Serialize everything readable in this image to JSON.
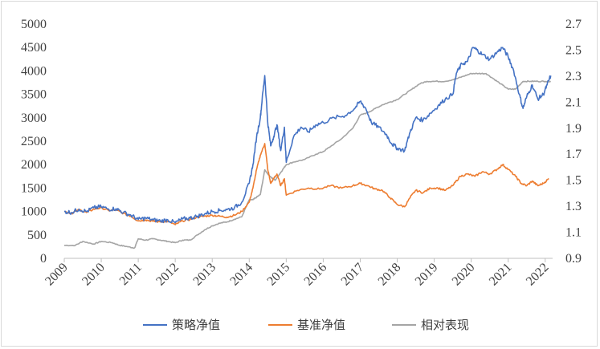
{
  "chart_data": {
    "type": "line",
    "title": "",
    "xlabel": "",
    "ylabel": "",
    "x_ticks": [
      "2009",
      "2010",
      "2011",
      "2012",
      "2013",
      "2014",
      "2015",
      "2016",
      "2017",
      "2018",
      "2019",
      "2020",
      "2021",
      "2022"
    ],
    "y_left_ticks": [
      "0",
      "500",
      "1000",
      "1500",
      "2000",
      "2500",
      "3000",
      "3500",
      "4000",
      "4500",
      "5000"
    ],
    "y_right_ticks": [
      "0.9",
      "1.1",
      "1.3",
      "1.5",
      "1.7",
      "1.9",
      "2.1",
      "2.3",
      "2.5",
      "2.7"
    ],
    "ylim_left": [
      0,
      5000
    ],
    "ylim_right": [
      0.9,
      2.7
    ],
    "xlim": [
      2009,
      2022.2
    ],
    "grid": false,
    "legend_position": "bottom",
    "series": [
      {
        "name": "策略净值",
        "axis": "left",
        "color": "#4472C4",
        "points": [
          [
            2009.0,
            1000
          ],
          [
            2009.2,
            980
          ],
          [
            2009.4,
            1050
          ],
          [
            2009.6,
            1000
          ],
          [
            2009.8,
            1080
          ],
          [
            2010.0,
            1100
          ],
          [
            2010.2,
            1050
          ],
          [
            2010.4,
            1060
          ],
          [
            2010.6,
            980
          ],
          [
            2010.8,
            920
          ],
          [
            2011.0,
            830
          ],
          [
            2011.2,
            860
          ],
          [
            2011.4,
            820
          ],
          [
            2011.6,
            800
          ],
          [
            2011.8,
            820
          ],
          [
            2012.0,
            760
          ],
          [
            2012.2,
            840
          ],
          [
            2012.4,
            860
          ],
          [
            2012.6,
            900
          ],
          [
            2012.8,
            950
          ],
          [
            2013.0,
            1000
          ],
          [
            2013.2,
            1020
          ],
          [
            2013.4,
            1040
          ],
          [
            2013.6,
            1080
          ],
          [
            2013.8,
            1200
          ],
          [
            2014.0,
            1600
          ],
          [
            2014.1,
            2000
          ],
          [
            2014.2,
            2600
          ],
          [
            2014.3,
            3000
          ],
          [
            2014.35,
            3400
          ],
          [
            2014.42,
            3900
          ],
          [
            2014.5,
            2900
          ],
          [
            2014.58,
            2400
          ],
          [
            2014.66,
            2600
          ],
          [
            2014.75,
            2850
          ],
          [
            2014.85,
            2300
          ],
          [
            2014.95,
            2800
          ],
          [
            2015.0,
            2050
          ],
          [
            2015.2,
            2600
          ],
          [
            2015.4,
            2800
          ],
          [
            2015.6,
            2700
          ],
          [
            2015.8,
            2850
          ],
          [
            2016.0,
            2900
          ],
          [
            2016.3,
            3000
          ],
          [
            2016.6,
            3050
          ],
          [
            2016.85,
            3200
          ],
          [
            2017.0,
            3350
          ],
          [
            2017.15,
            3200
          ],
          [
            2017.3,
            2900
          ],
          [
            2017.5,
            2800
          ],
          [
            2017.7,
            2650
          ],
          [
            2017.85,
            2450
          ],
          [
            2018.0,
            2350
          ],
          [
            2018.2,
            2300
          ],
          [
            2018.35,
            2700
          ],
          [
            2018.5,
            3000
          ],
          [
            2018.7,
            2950
          ],
          [
            2018.9,
            3100
          ],
          [
            2019.1,
            3250
          ],
          [
            2019.3,
            3400
          ],
          [
            2019.5,
            3500
          ],
          [
            2019.6,
            3950
          ],
          [
            2019.75,
            4150
          ],
          [
            2019.9,
            4200
          ],
          [
            2020.05,
            4500
          ],
          [
            2020.15,
            4450
          ],
          [
            2020.3,
            4350
          ],
          [
            2020.5,
            4250
          ],
          [
            2020.7,
            4400
          ],
          [
            2020.85,
            4500
          ],
          [
            2021.0,
            4300
          ],
          [
            2021.15,
            4000
          ],
          [
            2021.3,
            3500
          ],
          [
            2021.4,
            3200
          ],
          [
            2021.5,
            3450
          ],
          [
            2021.65,
            3700
          ],
          [
            2021.8,
            3400
          ],
          [
            2021.95,
            3500
          ],
          [
            2022.05,
            3700
          ],
          [
            2022.15,
            3900
          ]
        ]
      },
      {
        "name": "基准净值",
        "axis": "left",
        "color": "#ED7D31",
        "points": [
          [
            2009.0,
            1000
          ],
          [
            2009.2,
            960
          ],
          [
            2009.4,
            1040
          ],
          [
            2009.6,
            980
          ],
          [
            2009.8,
            1050
          ],
          [
            2010.0,
            1080
          ],
          [
            2010.2,
            1020
          ],
          [
            2010.4,
            1030
          ],
          [
            2010.6,
            960
          ],
          [
            2010.8,
            900
          ],
          [
            2011.0,
            800
          ],
          [
            2011.2,
            820
          ],
          [
            2011.4,
            790
          ],
          [
            2011.6,
            780
          ],
          [
            2011.8,
            790
          ],
          [
            2012.0,
            720
          ],
          [
            2012.2,
            800
          ],
          [
            2012.4,
            830
          ],
          [
            2012.6,
            880
          ],
          [
            2012.8,
            900
          ],
          [
            2013.0,
            920
          ],
          [
            2013.2,
            900
          ],
          [
            2013.4,
            880
          ],
          [
            2013.6,
            920
          ],
          [
            2013.8,
            1000
          ],
          [
            2014.0,
            1200
          ],
          [
            2014.1,
            1500
          ],
          [
            2014.2,
            1900
          ],
          [
            2014.3,
            2200
          ],
          [
            2014.42,
            2450
          ],
          [
            2014.5,
            1900
          ],
          [
            2014.58,
            1600
          ],
          [
            2014.66,
            1700
          ],
          [
            2014.75,
            1800
          ],
          [
            2014.85,
            1550
          ],
          [
            2014.95,
            1700
          ],
          [
            2015.0,
            1350
          ],
          [
            2015.3,
            1450
          ],
          [
            2015.6,
            1500
          ],
          [
            2015.9,
            1480
          ],
          [
            2016.2,
            1550
          ],
          [
            2016.5,
            1500
          ],
          [
            2016.8,
            1550
          ],
          [
            2017.0,
            1600
          ],
          [
            2017.2,
            1550
          ],
          [
            2017.4,
            1480
          ],
          [
            2017.6,
            1450
          ],
          [
            2017.8,
            1300
          ],
          [
            2018.0,
            1150
          ],
          [
            2018.2,
            1100
          ],
          [
            2018.35,
            1300
          ],
          [
            2018.5,
            1450
          ],
          [
            2018.7,
            1400
          ],
          [
            2018.9,
            1500
          ],
          [
            2019.1,
            1500
          ],
          [
            2019.3,
            1450
          ],
          [
            2019.5,
            1550
          ],
          [
            2019.7,
            1750
          ],
          [
            2019.9,
            1800
          ],
          [
            2020.1,
            1750
          ],
          [
            2020.3,
            1850
          ],
          [
            2020.5,
            1800
          ],
          [
            2020.7,
            1900
          ],
          [
            2020.85,
            2000
          ],
          [
            2021.0,
            1900
          ],
          [
            2021.2,
            1750
          ],
          [
            2021.35,
            1600
          ],
          [
            2021.5,
            1550
          ],
          [
            2021.65,
            1650
          ],
          [
            2021.8,
            1550
          ],
          [
            2021.95,
            1600
          ],
          [
            2022.1,
            1700
          ]
        ]
      },
      {
        "name": "相对表现",
        "axis": "right",
        "color": "#A5A5A5",
        "points": [
          [
            2009.0,
            1.0
          ],
          [
            2009.3,
            1.0
          ],
          [
            2009.5,
            1.03
          ],
          [
            2009.8,
            1.01
          ],
          [
            2010.0,
            1.03
          ],
          [
            2010.3,
            1.02
          ],
          [
            2010.5,
            1.0
          ],
          [
            2010.7,
            0.99
          ],
          [
            2010.9,
            0.98
          ],
          [
            2011.0,
            1.05
          ],
          [
            2011.2,
            1.04
          ],
          [
            2011.4,
            1.05
          ],
          [
            2011.6,
            1.04
          ],
          [
            2011.8,
            1.03
          ],
          [
            2012.0,
            1.02
          ],
          [
            2012.2,
            1.04
          ],
          [
            2012.4,
            1.04
          ],
          [
            2012.6,
            1.08
          ],
          [
            2012.8,
            1.12
          ],
          [
            2013.0,
            1.15
          ],
          [
            2013.2,
            1.17
          ],
          [
            2013.4,
            1.18
          ],
          [
            2013.6,
            1.2
          ],
          [
            2013.8,
            1.22
          ],
          [
            2014.0,
            1.35
          ],
          [
            2014.1,
            1.35
          ],
          [
            2014.2,
            1.37
          ],
          [
            2014.3,
            1.39
          ],
          [
            2014.42,
            1.58
          ],
          [
            2014.5,
            1.55
          ],
          [
            2014.6,
            1.52
          ],
          [
            2014.7,
            1.5
          ],
          [
            2014.8,
            1.54
          ],
          [
            2014.9,
            1.58
          ],
          [
            2015.0,
            1.62
          ],
          [
            2015.2,
            1.64
          ],
          [
            2015.5,
            1.66
          ],
          [
            2015.8,
            1.7
          ],
          [
            2016.0,
            1.72
          ],
          [
            2016.2,
            1.76
          ],
          [
            2016.5,
            1.82
          ],
          [
            2016.8,
            1.9
          ],
          [
            2017.0,
            2.0
          ],
          [
            2017.2,
            2.02
          ],
          [
            2017.4,
            2.05
          ],
          [
            2017.6,
            2.08
          ],
          [
            2017.8,
            2.1
          ],
          [
            2018.0,
            2.12
          ],
          [
            2018.2,
            2.16
          ],
          [
            2018.4,
            2.2
          ],
          [
            2018.6,
            2.24
          ],
          [
            2018.8,
            2.26
          ],
          [
            2019.0,
            2.26
          ],
          [
            2019.3,
            2.26
          ],
          [
            2019.6,
            2.28
          ],
          [
            2019.8,
            2.3
          ],
          [
            2020.0,
            2.32
          ],
          [
            2020.2,
            2.32
          ],
          [
            2020.4,
            2.32
          ],
          [
            2020.6,
            2.28
          ],
          [
            2020.8,
            2.24
          ],
          [
            2021.0,
            2.2
          ],
          [
            2021.2,
            2.2
          ],
          [
            2021.4,
            2.26
          ],
          [
            2021.6,
            2.26
          ],
          [
            2021.8,
            2.26
          ],
          [
            2022.0,
            2.26
          ],
          [
            2022.15,
            2.26
          ]
        ]
      }
    ]
  }
}
